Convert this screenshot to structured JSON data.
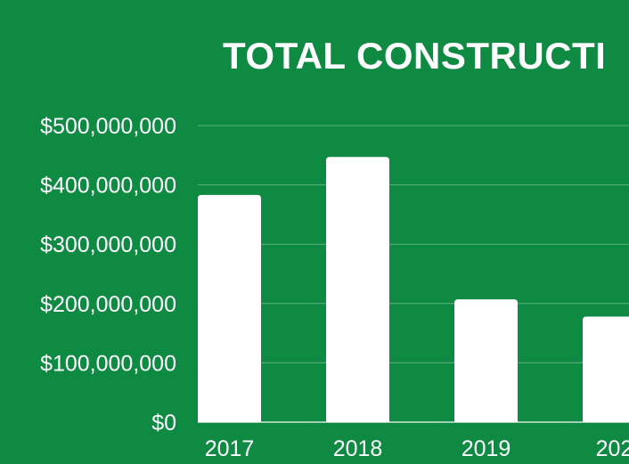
{
  "colors": {
    "background": "#0f8a43",
    "bar": "#ffffff",
    "gridline": "#5cb17f",
    "text": "#ffffff"
  },
  "chart_data": {
    "type": "bar",
    "title": "TOTAL CONSTRUCTI",
    "xlabel": "",
    "ylabel": "",
    "categories": [
      "2017",
      "2018",
      "2019",
      "202"
    ],
    "values": [
      383000000,
      447000000,
      207000000,
      178000000
    ],
    "ylim": [
      0,
      500000000
    ],
    "yticks": [
      0,
      100000000,
      200000000,
      300000000,
      400000000,
      500000000
    ],
    "ytick_labels": [
      "$0",
      "$100,000,000",
      "$200,000,000",
      "$300,000,000",
      "$400,000,000",
      "$500,000,000"
    ],
    "grid": true,
    "legend": "none"
  }
}
